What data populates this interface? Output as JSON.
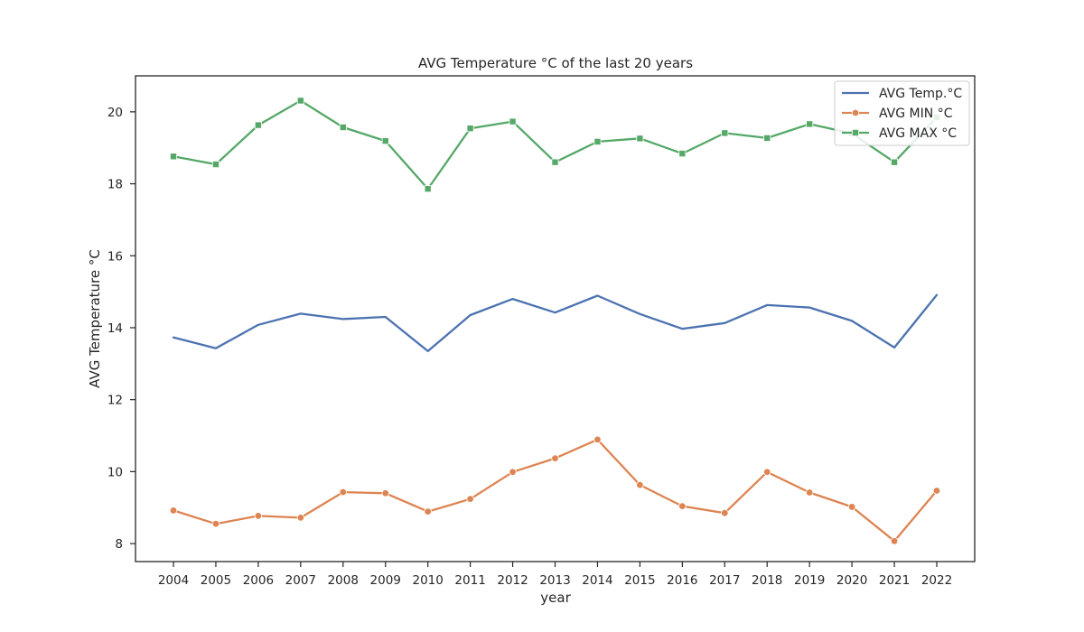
{
  "chart_data": {
    "type": "line",
    "title": "AVG Temperature °C of the last 20 years",
    "xlabel": "year",
    "ylabel": "AVG Temperature °C",
    "categories": [
      "2004",
      "2005",
      "2006",
      "2007",
      "2008",
      "2009",
      "2010",
      "2011",
      "2012",
      "2013",
      "2014",
      "2015",
      "2016",
      "2017",
      "2018",
      "2019",
      "2020",
      "2021",
      "2022"
    ],
    "ylim": [
      7.5,
      21.0
    ],
    "yticks": [
      8,
      10,
      12,
      14,
      16,
      18,
      20
    ],
    "grid": false,
    "legend_position": "top-right",
    "series": [
      {
        "name": "AVG Temp.°C",
        "color": "#4c72b0",
        "marker": "none",
        "values": [
          13.73,
          13.43,
          14.08,
          14.39,
          14.24,
          14.3,
          13.35,
          14.35,
          14.8,
          14.42,
          14.89,
          14.38,
          13.97,
          14.13,
          14.63,
          14.56,
          14.19,
          13.45,
          14.91
        ]
      },
      {
        "name": "AVG MIN °C",
        "color": "#dd8452",
        "marker": "circle",
        "values": [
          8.92,
          8.55,
          8.77,
          8.72,
          9.43,
          9.4,
          8.89,
          9.24,
          9.99,
          10.37,
          10.89,
          9.63,
          9.04,
          8.85,
          9.99,
          9.42,
          9.02,
          8.07,
          9.47
        ]
      },
      {
        "name": "AVG MAX °C",
        "color": "#55a868",
        "marker": "square",
        "values": [
          18.76,
          18.54,
          19.63,
          20.31,
          19.57,
          19.19,
          17.86,
          19.54,
          19.73,
          18.6,
          19.17,
          19.26,
          18.84,
          19.41,
          19.27,
          19.66,
          19.4,
          18.6,
          19.85
        ]
      }
    ]
  }
}
